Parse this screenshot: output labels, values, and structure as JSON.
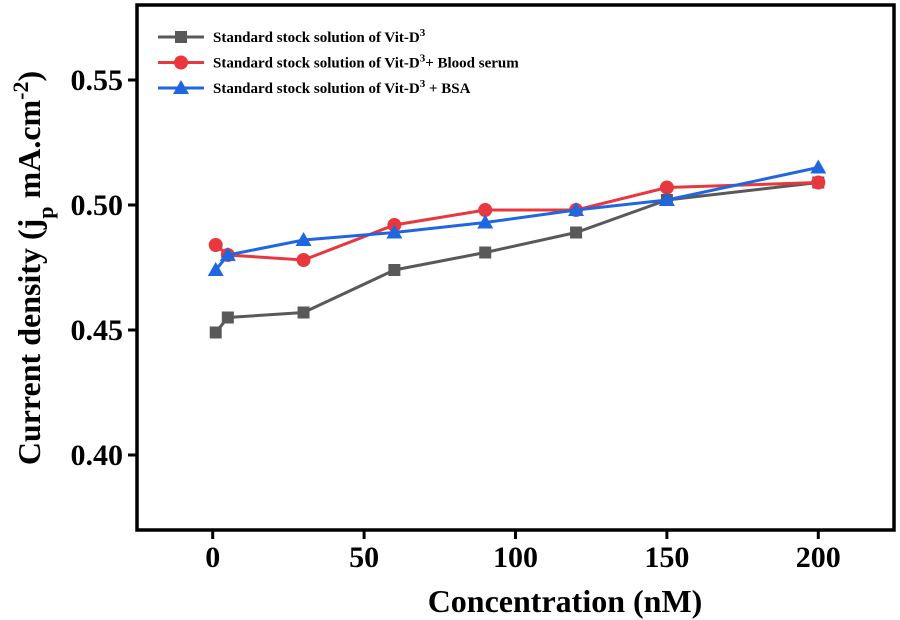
{
  "chart_data": {
    "type": "line",
    "title": "",
    "xlabel": "Concentration (nM)",
    "ylabel": {
      "main": "Current density (j",
      "sub": "p",
      "mid": " mA.cm",
      "sup": "-2",
      "end": ")"
    },
    "xlim": [
      -25,
      225
    ],
    "ylim": [
      0.37,
      0.58
    ],
    "xticks": [
      0,
      50,
      100,
      150,
      200
    ],
    "xtick_labels": [
      "0",
      "50",
      "100",
      "150",
      "200"
    ],
    "yticks": [
      0.4,
      0.45,
      0.5,
      0.55
    ],
    "ytick_labels": [
      "0.40",
      "0.45",
      "0.50",
      "0.55"
    ],
    "grid": false,
    "legend_position": "top-left",
    "series": [
      {
        "name": "Standard stock solution of Vit-D",
        "name_sup": "3",
        "name_suffix": "",
        "color": "#595959",
        "marker": "square",
        "x": [
          1,
          5,
          30,
          60,
          90,
          120,
          150,
          200
        ],
        "y": [
          0.449,
          0.455,
          0.457,
          0.474,
          0.481,
          0.489,
          0.502,
          0.509
        ]
      },
      {
        "name": "Standard stock solution of Vit-D",
        "name_sup": "3",
        "name_suffix": "+ Blood serum",
        "color": "#e8383d",
        "marker": "circle",
        "x": [
          1,
          5,
          30,
          60,
          90,
          120,
          150,
          200
        ],
        "y": [
          0.484,
          0.48,
          0.478,
          0.492,
          0.498,
          0.498,
          0.507,
          0.509
        ]
      },
      {
        "name": "Standard stock solution of Vit-D",
        "name_sup": "3",
        "name_suffix": " + BSA",
        "color": "#1f66e0",
        "marker": "triangle",
        "x": [
          1,
          5,
          30,
          60,
          90,
          120,
          150,
          200
        ],
        "y": [
          0.474,
          0.48,
          0.486,
          0.489,
          0.493,
          0.498,
          0.502,
          0.515
        ]
      }
    ]
  }
}
